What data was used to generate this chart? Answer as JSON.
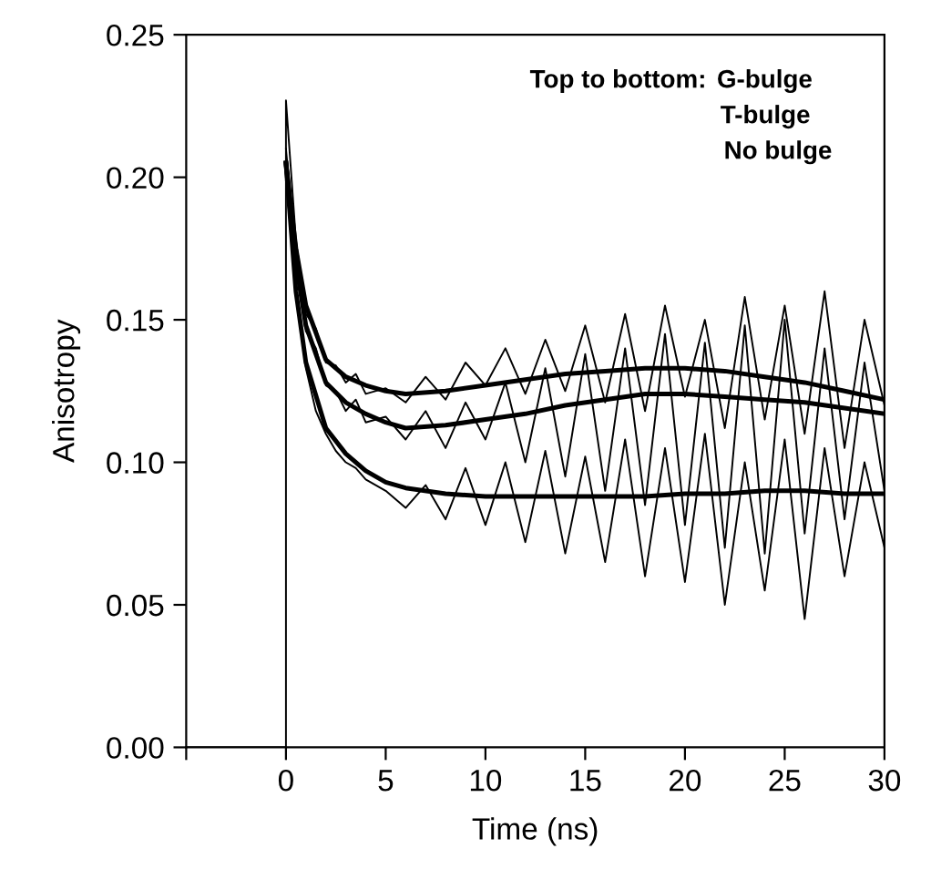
{
  "chart_data": {
    "type": "line",
    "xlabel": "Time (ns)",
    "ylabel": "Anisotropy",
    "annotations": [
      "Top to bottom:",
      "G-bulge",
      "T-bulge",
      "No bulge"
    ],
    "xlim": [
      -5,
      30
    ],
    "xticks": [
      {
        "value": -5,
        "label": null
      },
      0,
      5,
      10,
      15,
      20,
      25,
      30
    ],
    "ylim": [
      0,
      0.25
    ],
    "yticks": [
      {
        "value": 0,
        "label": "0.00"
      },
      {
        "value": 0.05,
        "label": "0.05"
      },
      {
        "value": 0.1,
        "label": "0.10"
      },
      {
        "value": 0.15,
        "label": "0.15"
      },
      {
        "value": 0.2,
        "label": "0.20"
      },
      {
        "value": 0.25,
        "label": "0.25"
      }
    ],
    "grid": false,
    "legend": false,
    "marker": "none",
    "line_style": "solid",
    "series": [
      {
        "color": "#000000",
        "x": [
          -5,
          0,
          0,
          0.5,
          1,
          1.5,
          2,
          2.5,
          3,
          3.5,
          4,
          5,
          6,
          7,
          8,
          9,
          10,
          11,
          12,
          13,
          14,
          15,
          16,
          17,
          18,
          19,
          20,
          21,
          22,
          23,
          24,
          25,
          26,
          27,
          28,
          29,
          30
        ],
        "values": [
          0,
          0,
          0.227,
          0.178,
          0.152,
          0.147,
          0.135,
          0.134,
          0.128,
          0.131,
          0.124,
          0.126,
          0.121,
          0.13,
          0.122,
          0.135,
          0.127,
          0.14,
          0.124,
          0.143,
          0.125,
          0.148,
          0.121,
          0.152,
          0.118,
          0.155,
          0.123,
          0.15,
          0.112,
          0.158,
          0.115,
          0.155,
          0.11,
          0.16,
          0.105,
          0.15,
          0.12
        ]
      },
      {
        "color": "#000000",
        "x": [
          0,
          0.5,
          1,
          1.5,
          2,
          2.5,
          3,
          3.5,
          4,
          5,
          6,
          7,
          8,
          9,
          10,
          11,
          12,
          13,
          14,
          15,
          16,
          17,
          18,
          19,
          20,
          21,
          22,
          23,
          24,
          25,
          26,
          27,
          28,
          29,
          30
        ],
        "values": [
          0.21,
          0.172,
          0.146,
          0.14,
          0.127,
          0.125,
          0.118,
          0.122,
          0.114,
          0.116,
          0.108,
          0.118,
          0.105,
          0.121,
          0.108,
          0.128,
          0.1,
          0.133,
          0.095,
          0.138,
          0.09,
          0.14,
          0.085,
          0.145,
          0.078,
          0.142,
          0.07,
          0.148,
          0.068,
          0.15,
          0.075,
          0.14,
          0.08,
          0.135,
          0.09
        ]
      },
      {
        "color": "#000000",
        "x": [
          0,
          0.5,
          1,
          1.5,
          2,
          2.5,
          3,
          3.5,
          4,
          5,
          6,
          7,
          8,
          9,
          10,
          11,
          12,
          13,
          14,
          15,
          16,
          17,
          18,
          19,
          20,
          21,
          22,
          23,
          24,
          25,
          26,
          27,
          28,
          29,
          30
        ],
        "values": [
          0.2,
          0.16,
          0.133,
          0.118,
          0.11,
          0.104,
          0.1,
          0.098,
          0.094,
          0.09,
          0.084,
          0.092,
          0.08,
          0.098,
          0.078,
          0.1,
          0.072,
          0.104,
          0.068,
          0.102,
          0.065,
          0.108,
          0.06,
          0.105,
          0.058,
          0.11,
          0.05,
          0.1,
          0.055,
          0.108,
          0.045,
          0.105,
          0.06,
          0.1,
          0.07
        ]
      },
      {
        "color": "#000000",
        "x": [
          0,
          0.5,
          1,
          2,
          3,
          4,
          5,
          6,
          8,
          10,
          12,
          14,
          16,
          18,
          20,
          22,
          24,
          26,
          28,
          30
        ],
        "values": [
          0.205,
          0.175,
          0.155,
          0.136,
          0.13,
          0.127,
          0.125,
          0.124,
          0.125,
          0.127,
          0.129,
          0.131,
          0.132,
          0.133,
          0.133,
          0.132,
          0.13,
          0.128,
          0.125,
          0.122
        ]
      },
      {
        "color": "#000000",
        "x": [
          0,
          0.5,
          1,
          2,
          3,
          4,
          5,
          6,
          8,
          10,
          12,
          14,
          16,
          18,
          20,
          22,
          24,
          26,
          28,
          30
        ],
        "values": [
          0.205,
          0.17,
          0.148,
          0.128,
          0.121,
          0.117,
          0.114,
          0.112,
          0.113,
          0.115,
          0.117,
          0.12,
          0.122,
          0.124,
          0.124,
          0.123,
          0.122,
          0.121,
          0.119,
          0.117
        ]
      },
      {
        "color": "#000000",
        "x": [
          0,
          0.5,
          1,
          2,
          3,
          4,
          5,
          6,
          8,
          10,
          12,
          14,
          16,
          18,
          20,
          22,
          24,
          26,
          28,
          30
        ],
        "values": [
          0.205,
          0.16,
          0.135,
          0.112,
          0.103,
          0.097,
          0.093,
          0.091,
          0.089,
          0.088,
          0.088,
          0.088,
          0.088,
          0.088,
          0.089,
          0.089,
          0.09,
          0.09,
          0.089,
          0.089
        ]
      }
    ]
  }
}
